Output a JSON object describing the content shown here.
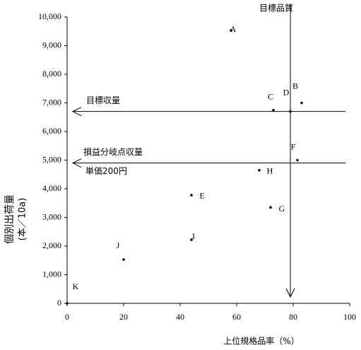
{
  "chart_data": {
    "type": "scatter",
    "xlabel": "上位規格品率（%）",
    "ylabel": "個別出荷量",
    "ylabel_unit": "(本／10a)",
    "labels": [
      "A",
      "B",
      "C",
      "D",
      "E",
      "F",
      "G",
      "H",
      "I",
      "J",
      "K"
    ],
    "x": [
      58,
      83,
      73,
      79,
      44,
      81.5,
      72,
      68,
      44,
      20,
      0
    ],
    "y": [
      9530,
      7000,
      6750,
      6700,
      3780,
      5000,
      3350,
      4650,
      2220,
      1530,
      0
    ],
    "color": "#000000",
    "xlim": [
      0,
      100
    ],
    "xticks": [
      0,
      20,
      40,
      60,
      80,
      100
    ],
    "ylim": [
      0,
      10000
    ],
    "yticks": [
      0,
      {
        "value": 1000,
        "label": "1,000"
      },
      {
        "value": 2000,
        "label": "2,000"
      },
      {
        "value": 3000,
        "label": "3,000"
      },
      {
        "value": 4000,
        "label": "4,000"
      },
      {
        "value": 5000,
        "label": "5,000"
      },
      {
        "value": 6000,
        "label": "6,000"
      },
      {
        "value": 7000,
        "label": "7,000"
      },
      {
        "value": 8000,
        "label": "8,000"
      },
      {
        "value": 9000,
        "label": "9,000"
      },
      {
        "value": 10000,
        "label": "10,000"
      }
    ],
    "reference_lines": [
      {
        "label": "目標品質",
        "x": 79
      },
      {
        "label": "目標収量",
        "y": 6700
      },
      {
        "label": "損益分岐点収量",
        "sublabel": "単価200円",
        "y": 4900
      }
    ]
  }
}
